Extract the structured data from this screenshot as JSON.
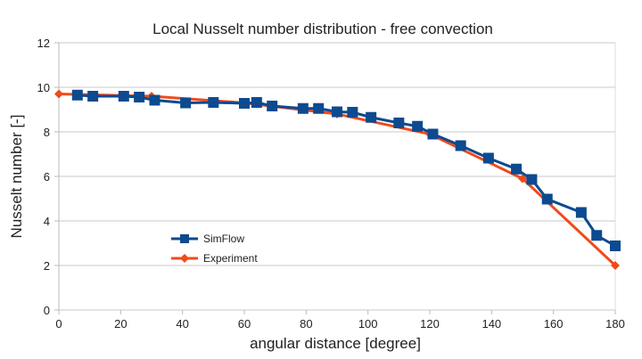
{
  "chart_data": {
    "type": "line",
    "title": "Local Nusselt number distribution - free convection",
    "xlabel": "angular distance [degree]",
    "ylabel": "Nusselt number [-]",
    "xlim": [
      0,
      180
    ],
    "ylim": [
      0,
      12
    ],
    "xticks": [
      "0",
      "20",
      "40",
      "60",
      "80",
      "100",
      "120",
      "140",
      "160",
      "180"
    ],
    "yticks": [
      "0",
      "2",
      "4",
      "6",
      "8",
      "10",
      "12"
    ],
    "grid": "horizontal",
    "legend_position": "lower-left",
    "series": [
      {
        "name": "SimFlow",
        "color": "#0d4a8f",
        "marker": "square",
        "x": [
          6,
          11,
          21,
          26,
          31,
          41,
          50,
          60,
          64,
          69,
          79,
          84,
          90,
          95,
          101,
          110,
          116,
          121,
          130,
          139,
          148,
          153,
          158,
          169,
          174,
          180
        ],
        "y": [
          9.65,
          9.6,
          9.6,
          9.56,
          9.42,
          9.3,
          9.32,
          9.28,
          9.32,
          9.16,
          9.05,
          9.05,
          8.9,
          8.88,
          8.65,
          8.4,
          8.25,
          7.9,
          7.38,
          6.82,
          6.33,
          5.86,
          4.98,
          4.38,
          3.35,
          2.88
        ]
      },
      {
        "name": "Experiment",
        "color": "#ef4b1b",
        "marker": "diamond",
        "x": [
          0,
          30,
          60,
          90,
          120,
          150,
          180
        ],
        "y": [
          9.7,
          9.6,
          9.3,
          8.8,
          7.9,
          5.9,
          2.0
        ]
      }
    ]
  }
}
